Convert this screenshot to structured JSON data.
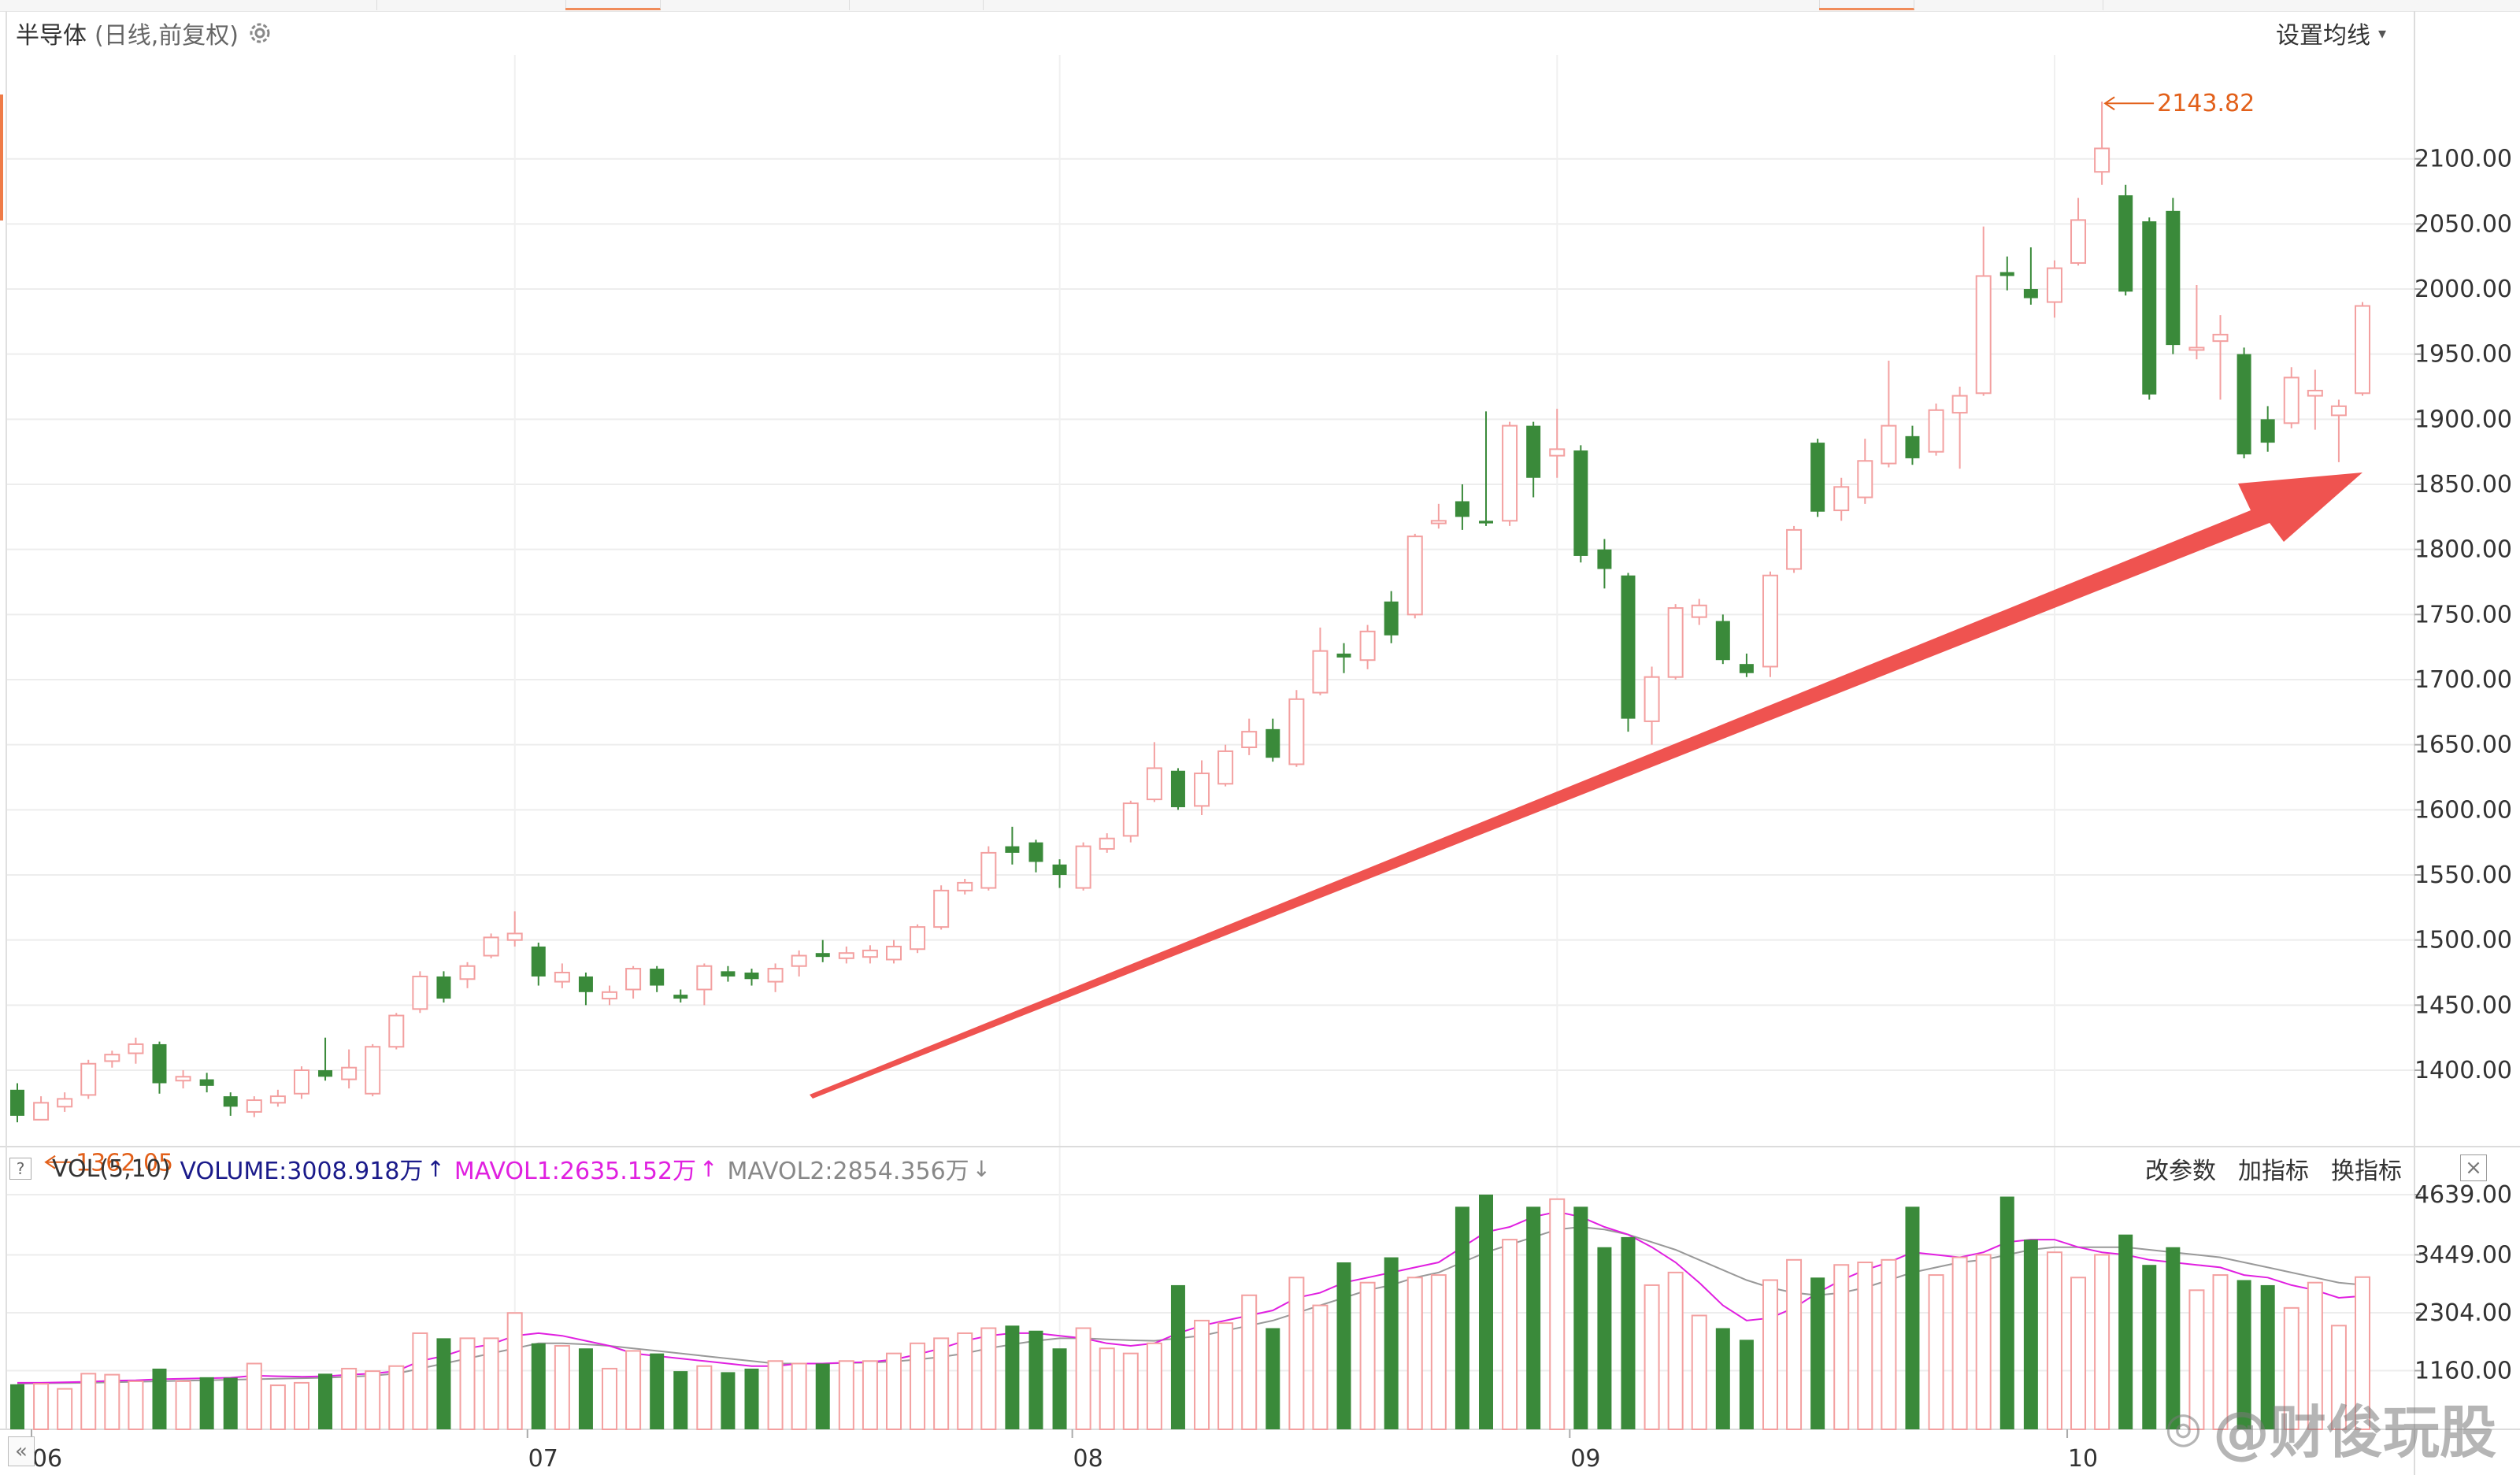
{
  "header": {
    "title": "半导体",
    "subtitle": "(日线,前复权)",
    "ma_settings": "设置均线"
  },
  "volume_bar": {
    "label": "VOL(5,10)",
    "volume": "VOLUME:3008.918万",
    "mavol1": "MAVOL1:2635.152万",
    "mavol2": "MAVOL2:2854.356万",
    "question": "?",
    "buttons": {
      "params": "改参数",
      "add": "加指标",
      "switch": "换指标"
    },
    "close": "×"
  },
  "watermark": {
    "logo": "@",
    "text": "@财俊玩股"
  },
  "colors": {
    "up": "#f3a0a0",
    "down": "#3a8a3a",
    "ma1": "#e020e0",
    "ma2": "#999999",
    "arrow": "#ef5350",
    "annotation": "#e2601a"
  },
  "chart_data": [
    {
      "type": "candlestick",
      "title": "半导体",
      "subtitle": "(日线,前复权)",
      "y_ticks": [
        2100,
        2050,
        2000,
        1950,
        1900,
        1850,
        1800,
        1750,
        1700,
        1650,
        1600,
        1550,
        1500,
        1450,
        1400
      ],
      "y_tick_labels": [
        "2100.00",
        "2050.00",
        "2000.00",
        "1950.00",
        "1900.00",
        "1850.00",
        "1800.00",
        "1750.00",
        "1700.00",
        "1650.00",
        "1600.00",
        "1550.00",
        "1500.00",
        "1450.00",
        "1400.00"
      ],
      "x_labels": [
        {
          "label": "06",
          "index": 0
        },
        {
          "label": "07",
          "index": 22
        },
        {
          "label": "08",
          "index": 45
        },
        {
          "label": "09",
          "index": 66
        },
        {
          "label": "10",
          "index": 87
        }
      ],
      "annotations": {
        "high": "2143.82",
        "low": "1362.05"
      },
      "candles": [
        [
          1385,
          1365,
          1390,
          1360
        ],
        [
          1362,
          1375,
          1380,
          1362
        ],
        [
          1372,
          1378,
          1383,
          1368
        ],
        [
          1381,
          1405,
          1408,
          1378
        ],
        [
          1407,
          1412,
          1415,
          1402
        ],
        [
          1413,
          1420,
          1425,
          1405
        ],
        [
          1420,
          1390,
          1422,
          1382
        ],
        [
          1392,
          1395,
          1400,
          1386
        ],
        [
          1393,
          1388,
          1398,
          1383
        ],
        [
          1380,
          1372,
          1383,
          1365
        ],
        [
          1368,
          1377,
          1380,
          1364
        ],
        [
          1375,
          1380,
          1385,
          1372
        ],
        [
          1382,
          1400,
          1403,
          1378
        ],
        [
          1400,
          1395,
          1425,
          1392
        ],
        [
          1393,
          1402,
          1416,
          1386
        ],
        [
          1382,
          1418,
          1420,
          1380
        ],
        [
          1418,
          1442,
          1444,
          1416
        ],
        [
          1447,
          1472,
          1476,
          1444
        ],
        [
          1472,
          1455,
          1476,
          1452
        ],
        [
          1470,
          1480,
          1483,
          1463
        ],
        [
          1488,
          1502,
          1505,
          1486
        ],
        [
          1500,
          1505,
          1522,
          1495
        ],
        [
          1495,
          1472,
          1498,
          1465
        ],
        [
          1468,
          1475,
          1482,
          1463
        ],
        [
          1472,
          1460,
          1475,
          1450
        ],
        [
          1455,
          1460,
          1465,
          1450
        ],
        [
          1462,
          1478,
          1480,
          1455
        ],
        [
          1478,
          1465,
          1480,
          1460
        ],
        [
          1458,
          1455,
          1462,
          1452
        ],
        [
          1462,
          1480,
          1482,
          1450
        ],
        [
          1476,
          1472,
          1480,
          1468
        ],
        [
          1475,
          1470,
          1478,
          1465
        ],
        [
          1468,
          1478,
          1482,
          1460
        ],
        [
          1480,
          1488,
          1492,
          1472
        ],
        [
          1490,
          1487,
          1500,
          1483
        ],
        [
          1486,
          1490,
          1495,
          1482
        ],
        [
          1487,
          1492,
          1496,
          1482
        ],
        [
          1485,
          1495,
          1500,
          1482
        ],
        [
          1493,
          1510,
          1512,
          1490
        ],
        [
          1510,
          1538,
          1542,
          1508
        ],
        [
          1538,
          1544,
          1547,
          1535
        ],
        [
          1540,
          1567,
          1572,
          1538
        ],
        [
          1572,
          1567,
          1587,
          1558
        ],
        [
          1575,
          1560,
          1577,
          1552
        ],
        [
          1558,
          1550,
          1562,
          1540
        ],
        [
          1540,
          1572,
          1575,
          1538
        ],
        [
          1570,
          1578,
          1582,
          1567
        ],
        [
          1580,
          1605,
          1607,
          1575
        ],
        [
          1608,
          1632,
          1652,
          1606
        ],
        [
          1630,
          1602,
          1632,
          1600
        ],
        [
          1603,
          1628,
          1638,
          1596
        ],
        [
          1620,
          1645,
          1650,
          1618
        ],
        [
          1648,
          1660,
          1670,
          1642
        ],
        [
          1662,
          1640,
          1670,
          1637
        ],
        [
          1635,
          1685,
          1692,
          1633
        ],
        [
          1690,
          1722,
          1740,
          1688
        ],
        [
          1720,
          1717,
          1728,
          1705
        ],
        [
          1715,
          1737,
          1742,
          1708
        ],
        [
          1760,
          1734,
          1768,
          1728
        ],
        [
          1750,
          1810,
          1812,
          1747
        ],
        [
          1820,
          1822,
          1835,
          1816
        ],
        [
          1837,
          1825,
          1850,
          1815
        ],
        [
          1822,
          1820,
          1906,
          1818
        ],
        [
          1822,
          1895,
          1898,
          1818
        ],
        [
          1895,
          1855,
          1898,
          1840
        ],
        [
          1872,
          1877,
          1908,
          1855
        ],
        [
          1876,
          1795,
          1880,
          1790
        ],
        [
          1800,
          1785,
          1808,
          1770
        ],
        [
          1780,
          1670,
          1782,
          1660
        ],
        [
          1668,
          1702,
          1710,
          1650
        ],
        [
          1702,
          1755,
          1758,
          1700
        ],
        [
          1748,
          1757,
          1762,
          1742
        ],
        [
          1745,
          1715,
          1750,
          1712
        ],
        [
          1712,
          1705,
          1720,
          1702
        ],
        [
          1710,
          1780,
          1783,
          1702
        ],
        [
          1785,
          1815,
          1818,
          1782
        ],
        [
          1882,
          1829,
          1885,
          1825
        ],
        [
          1830,
          1848,
          1855,
          1822
        ],
        [
          1840,
          1868,
          1885,
          1835
        ],
        [
          1866,
          1895,
          1945,
          1863
        ],
        [
          1887,
          1870,
          1895,
          1865
        ],
        [
          1875,
          1907,
          1912,
          1872
        ],
        [
          1905,
          1918,
          1925,
          1862
        ],
        [
          1920,
          2010,
          2048,
          1918
        ],
        [
          2013,
          2010,
          2025,
          1999
        ],
        [
          2000,
          1993,
          2032,
          1988
        ],
        [
          1990,
          2016,
          2022,
          1978
        ],
        [
          2020,
          2053,
          2070,
          2018
        ],
        [
          2090,
          2108,
          2144,
          2080
        ],
        [
          2072,
          1998,
          2080,
          1995
        ],
        [
          2052,
          1919,
          2055,
          1915
        ],
        [
          2060,
          1957,
          2070,
          1950
        ],
        [
          1955,
          1955,
          2003,
          1946
        ],
        [
          1960,
          1965,
          1980,
          1915
        ],
        [
          1950,
          1873,
          1955,
          1870
        ],
        [
          1900,
          1882,
          1910,
          1875
        ],
        [
          1897,
          1932,
          1940,
          1893
        ],
        [
          1918,
          1922,
          1938,
          1892
        ],
        [
          1903,
          1910,
          1915,
          1867
        ],
        [
          1920,
          1987,
          1990,
          1918
        ]
      ]
    },
    {
      "type": "bar",
      "title": "VOL(5,10)",
      "y_ticks": [
        4639,
        3449,
        2304,
        1160
      ],
      "y_tick_labels": [
        "4639.00",
        "3449.00",
        "2304.00",
        "1160.00"
      ],
      "volumes": [
        890,
        900,
        800,
        1100,
        1080,
        950,
        1200,
        950,
        1030,
        1020,
        1300,
        870,
        920,
        1100,
        1200,
        1150,
        1250,
        1900,
        1800,
        1800,
        1800,
        2300,
        1700,
        1650,
        1600,
        1200,
        1550,
        1500,
        1150,
        1250,
        1130,
        1200,
        1350,
        1300,
        1300,
        1350,
        1350,
        1500,
        1700,
        1800,
        1900,
        2000,
        2050,
        1950,
        1600,
        2000,
        1600,
        1500,
        1700,
        2850,
        2150,
        2100,
        2650,
        2000,
        3000,
        2450,
        3300,
        2900,
        3400,
        3000,
        3050,
        4400,
        4640,
        3750,
        4400,
        4550,
        4400,
        3600,
        3800,
        2850,
        3100,
        2250,
        2000,
        1770,
        2950,
        3350,
        3000,
        3250,
        3300,
        3350,
        4400,
        3050,
        3400,
        3450,
        4600,
        3750,
        3500,
        3000,
        3450,
        3850,
        3250,
        3600,
        2750,
        3050,
        2950,
        2850,
        2400,
        2900,
        2050,
        3008.918
      ],
      "mavol1": [
        920,
        920,
        930,
        940,
        960,
        970,
        990,
        1000,
        1010,
        1020,
        1060,
        1050,
        1040,
        1050,
        1080,
        1100,
        1150,
        1350,
        1450,
        1600,
        1680,
        1850,
        1900,
        1850,
        1750,
        1650,
        1500,
        1450,
        1400,
        1350,
        1300,
        1250,
        1250,
        1300,
        1300,
        1320,
        1330,
        1380,
        1480,
        1600,
        1750,
        1850,
        1900,
        1900,
        1850,
        1800,
        1700,
        1650,
        1700,
        1900,
        2050,
        2150,
        2250,
        2350,
        2600,
        2700,
        2900,
        3000,
        3100,
        3200,
        3300,
        3600,
        3900,
        4000,
        4200,
        4300,
        4200,
        4000,
        3850,
        3600,
        3300,
        2900,
        2450,
        2150,
        2200,
        2400,
        2700,
        2950,
        3150,
        3300,
        3500,
        3450,
        3400,
        3500,
        3700,
        3750,
        3750,
        3600,
        3500,
        3450,
        3350,
        3300,
        3250,
        3200,
        3050,
        3000,
        2850,
        2750,
        2600,
        2635.152
      ],
      "mavol2": [
        900,
        910,
        915,
        920,
        930,
        940,
        950,
        960,
        970,
        980,
        990,
        1000,
        1010,
        1020,
        1040,
        1060,
        1100,
        1200,
        1300,
        1400,
        1500,
        1600,
        1700,
        1700,
        1680,
        1650,
        1600,
        1550,
        1500,
        1450,
        1400,
        1350,
        1300,
        1300,
        1300,
        1310,
        1320,
        1340,
        1380,
        1430,
        1500,
        1600,
        1680,
        1750,
        1800,
        1800,
        1780,
        1760,
        1750,
        1800,
        1850,
        1950,
        2050,
        2150,
        2300,
        2450,
        2600,
        2750,
        2850,
        3000,
        3100,
        3300,
        3500,
        3650,
        3800,
        3950,
        4000,
        3950,
        3850,
        3700,
        3550,
        3350,
        3150,
        2950,
        2800,
        2700,
        2650,
        2700,
        2800,
        2950,
        3100,
        3200,
        3300,
        3350,
        3450,
        3550,
        3600,
        3600,
        3600,
        3600,
        3550,
        3500,
        3450,
        3400,
        3300,
        3200,
        3100,
        3000,
        2900,
        2854.356
      ]
    }
  ]
}
